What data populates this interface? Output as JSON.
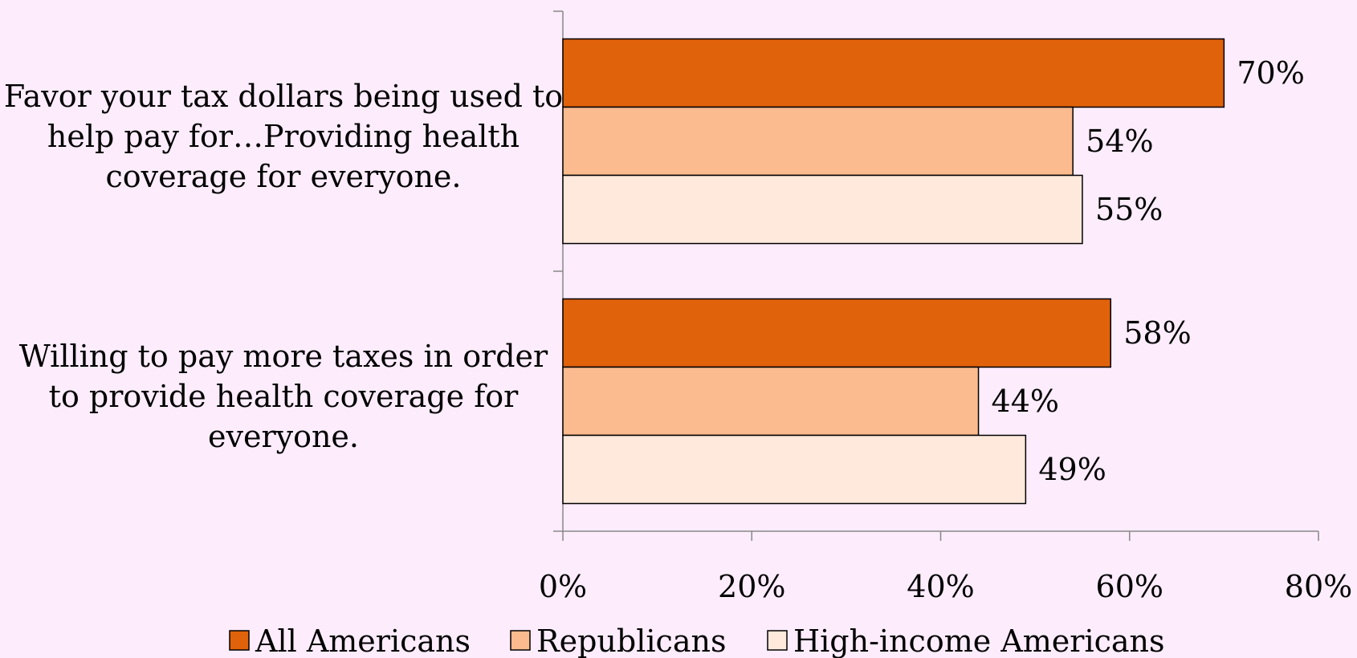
{
  "chart_data": {
    "type": "bar",
    "orientation": "horizontal",
    "categories": [
      "Favor your tax dollars being used to help pay for…Providing health coverage for everyone.",
      "Willing to pay more taxes in order to provide health coverage for everyone."
    ],
    "category_lines": [
      [
        "Favor your tax dollars being used to",
        "help pay for…Providing health",
        "coverage for everyone."
      ],
      [
        "Willing to pay more taxes in order",
        "to provide health coverage for",
        "everyone."
      ]
    ],
    "series": [
      {
        "name": "All Americans",
        "values": [
          70,
          58
        ],
        "labels": [
          "70%",
          "58%"
        ],
        "color": "#e0620a"
      },
      {
        "name": "Republicans",
        "values": [
          54,
          44
        ],
        "labels": [
          "54%",
          "44%"
        ],
        "color": "#fbbb8e"
      },
      {
        "name": "High-income Americans",
        "values": [
          55,
          49
        ],
        "labels": [
          "55%",
          "49%"
        ],
        "color": "#fee9dc"
      }
    ],
    "xlim": [
      0,
      80
    ],
    "xticks": [
      0,
      20,
      40,
      60,
      80
    ],
    "xtick_labels": [
      "0%",
      "20%",
      "40%",
      "60%",
      "80%"
    ],
    "title": "",
    "xlabel": "",
    "ylabel": "",
    "grid": false,
    "legend_position": "bottom"
  }
}
